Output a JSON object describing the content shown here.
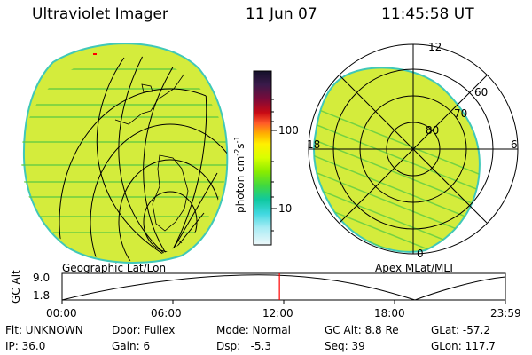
{
  "header": {
    "instrument": "Ultraviolet Imager",
    "date": "11 Jun 07",
    "time": "11:45:58 UT"
  },
  "colorbar": {
    "unit": "photon cm",
    "unit_exp": "-2",
    "unit_mid": "s",
    "unit_exp2": "-1",
    "ticks": [
      "100",
      "10"
    ],
    "colors": [
      "#14102a",
      "#3b1a4a",
      "#7a0a3a",
      "#b40a14",
      "#e8283c",
      "#ff7a20",
      "#ffb000",
      "#fff000",
      "#d8ff00",
      "#a8f000",
      "#60e020",
      "#20d060",
      "#10c8a0",
      "#48d8e0",
      "#a8ecf4",
      "#e8f8fa"
    ]
  },
  "panels": {
    "geographic_label": "Geographic Lat/Lon",
    "apex_label": "Apex MLat/MLT",
    "polar_labels": [
      "12",
      "60",
      "70",
      "80",
      "18",
      "6",
      "0"
    ]
  },
  "altitude_plot": {
    "ylabel": "GC Alt",
    "yticks": [
      "9.0",
      "1.8"
    ],
    "xticks": [
      "00:00",
      "06:00",
      "12:00",
      "18:00",
      "23:59"
    ],
    "current_time_fraction": 0.4903
  },
  "info": {
    "row1": {
      "filter": "Flt: UNKNOWN",
      "door": "Door: Fullex",
      "mode": "Mode: Normal",
      "gc_alt": "GC Alt: 8.8 Re",
      "glat": "GLat: -57.2"
    },
    "row2": {
      "ip": "IP: 36.0",
      "gain": "Gain:  6",
      "dsp": "Dsp:   -5.3",
      "seq": "Seq: 39",
      "glon": "GLon: 117.7"
    }
  },
  "colors": {
    "field": "#d4ec3c",
    "stripe": "#5ccc44",
    "edge": "#40c8b8",
    "marker": "#ff0000"
  }
}
